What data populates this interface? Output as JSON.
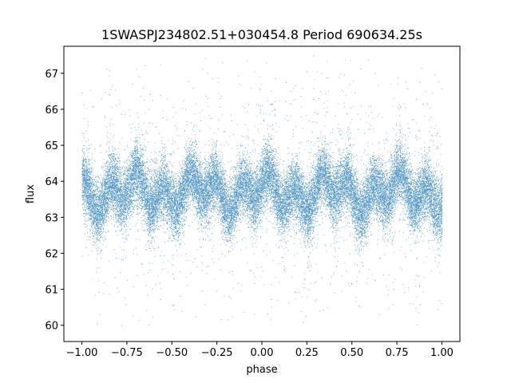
{
  "chart_data": {
    "type": "scatter",
    "title": "1SWASPJ234802.51+030454.8 Period 690634.25s",
    "xlabel": "phase",
    "ylabel": "flux",
    "xlim": [
      -1.1,
      1.1
    ],
    "ylim": [
      59.55,
      67.75
    ],
    "x_ticks": [
      -1.0,
      -0.75,
      -0.5,
      -0.25,
      0.0,
      0.25,
      0.5,
      0.75,
      1.0
    ],
    "x_tick_labels": [
      "−1.00",
      "−0.75",
      "−0.50",
      "−0.25",
      "0.00",
      "0.25",
      "0.50",
      "0.75",
      "1.00"
    ],
    "y_ticks": [
      60,
      61,
      62,
      63,
      64,
      65,
      66,
      67
    ],
    "y_tick_labels": [
      "60",
      "61",
      "62",
      "63",
      "64",
      "65",
      "66",
      "67"
    ],
    "grid": false,
    "legend": "none",
    "point_color": "#1f77b4",
    "series": [
      {
        "x_range": [
          -1.0,
          1.0
        ],
        "y_median": 63.7,
        "y_core_range": [
          62.5,
          65.0
        ],
        "y_full_range": [
          60.0,
          67.5
        ],
        "description_count": 30000
      }
    ]
  }
}
